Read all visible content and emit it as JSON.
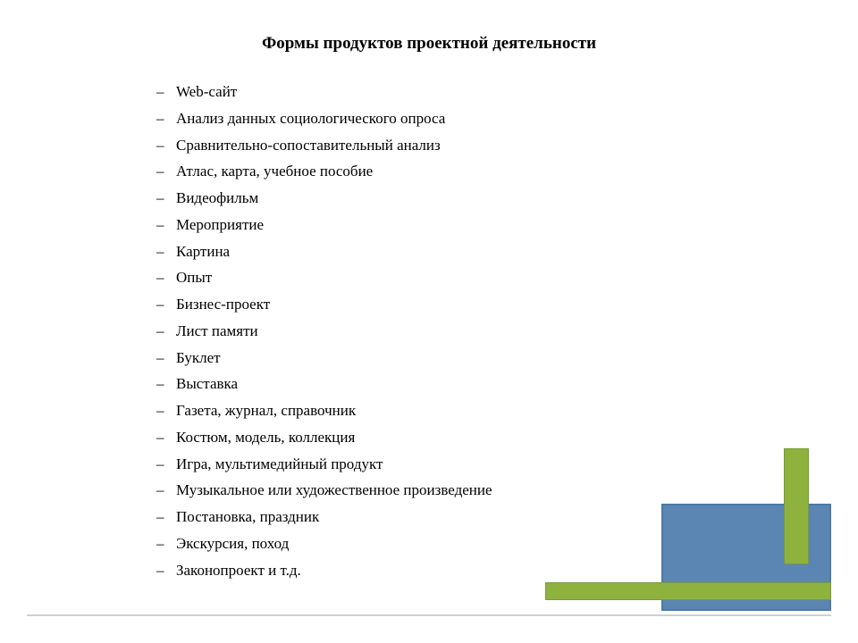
{
  "document": {
    "faded_header": "",
    "title": "Формы продуктов проектной деятельности",
    "items": [
      "Web-сайт",
      "Анализ данных социологического опроса",
      "Сравнительно-сопоставительный анализ",
      "Атлас, карта, учебное пособие",
      "Видеофильм",
      "Мероприятие",
      "Картина",
      "Опыт",
      "Бизнес-проект",
      "Лист памяти",
      "Буклет",
      "Выставка",
      "Газета, журнал, справочник",
      "Костюм, модель, коллекция",
      "Игра, мультимедийный продукт",
      "Музыкальное или художественное произведение",
      "Постановка, праздник",
      "Экскурсия, поход",
      "Законопроект и т.д."
    ]
  },
  "style": {
    "background_color": "#ffffff",
    "text_color": "#000000",
    "title_fontsize": 19,
    "item_fontsize": 17,
    "line_height": 1.75,
    "rule_color": "#d0d0d0",
    "decoration": {
      "blue_fill": "#5b86b4",
      "blue_border": "#4a7aa8",
      "green_fill": "#8fb23f",
      "green_border": "#7a9a34"
    }
  }
}
